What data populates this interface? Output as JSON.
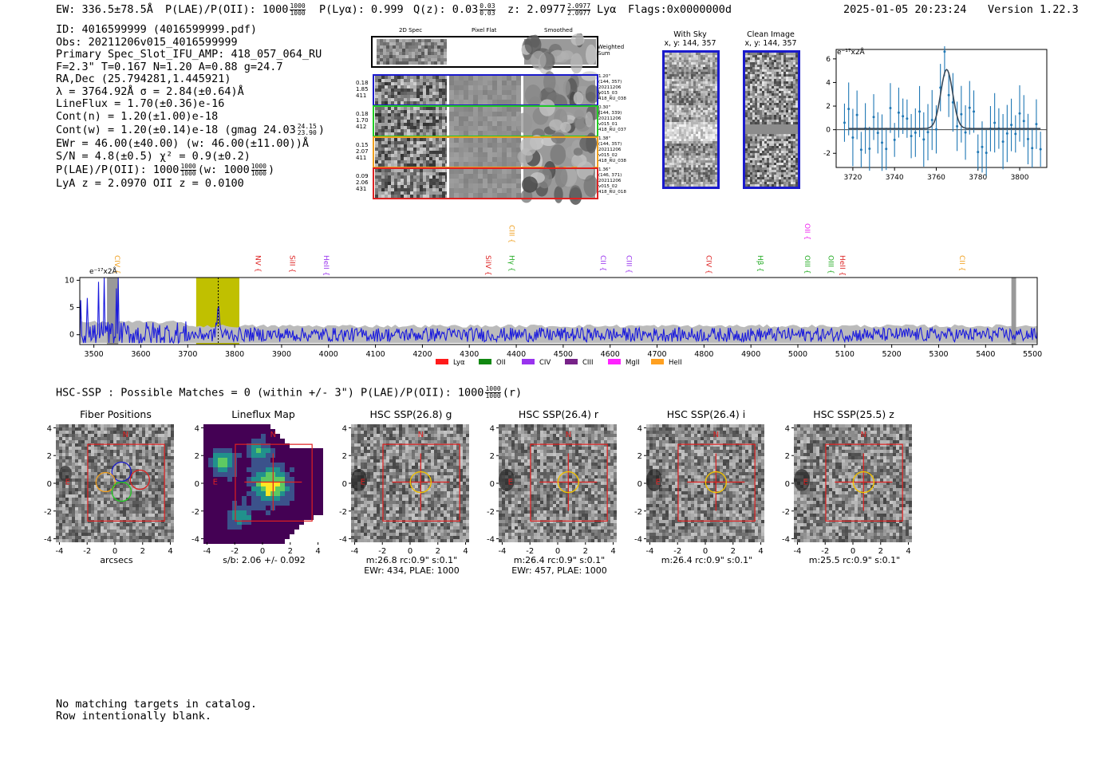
{
  "header": {
    "ew": "EW: 336.5±78.5Å",
    "plae_label": "P(LAE)/P(OII): 1000",
    "plae_hi": "1000",
    "plae_lo": "1000",
    "plya": "P(Lyα): 0.999",
    "qz_label": "Q(z): 0.03",
    "qz_hi": "0.03",
    "qz_lo": "0.03",
    "z_label": "z: 2.0977",
    "z_hi": "2.0977",
    "z_lo": "2.0977",
    "line": "Lyα",
    "flags": "Flags:0x0000000d",
    "datetime": "2025-01-05 20:23:24",
    "version": "Version 1.22.3"
  },
  "info": {
    "id": "ID: 4016599999 (4016599999.pdf)",
    "obs": "Obs: 20211206v015_4016599999",
    "primary": "Primary Spec_Slot_IFU_AMP: 418_057_064_RU",
    "params": "F=2.3\"  T=0.167  N=1.20  A=0.88  g=24.7",
    "radec": "RA,Dec (25.794281,1.445921)",
    "lambda": "λ = 3764.92Å  σ = 2.84(±0.64)Å",
    "lineflux": "LineFlux = 1.70(±0.36)e-16",
    "contn": "Cont(n) = 1.20(±1.00)e-18",
    "contw": "Cont(w) = 1.20(±0.14)e-18 (gmag 24.03",
    "contw_hi": "24.15",
    "contw_lo": "23.90",
    "contw_end": ")",
    "ewr": "EWr = 46.00(±40.00) (w: 46.00(±11.00))Å",
    "sn": "S/N = 4.8(±0.5)  χ² = 0.9(±0.2)",
    "plae": "P(LAE)/P(OII): 1000",
    "plae_hi": "1000",
    "plae_lo": "1000",
    "plae_w": "(w: 1000",
    "plae_w_hi": "1000",
    "plae_w_lo": "1000",
    "plae_end": ")",
    "lyaz": "LyA z = 2.0970  OII z = 0.0100"
  },
  "cutouts": {
    "col_headers": [
      "2D Spec",
      "Pixel Flat",
      "Smoothed"
    ],
    "weighted": "Weighted\nSum",
    "rows": [
      {
        "left": [
          "0.18",
          "1.85",
          "411"
        ],
        "right": [
          "1.20\"",
          "(144, 357)",
          "20211206",
          "v015_03",
          "418_RU_038"
        ],
        "color": "#1a1acc"
      },
      {
        "left": [
          "0.18",
          "1.70",
          "412"
        ],
        "right": [
          "0.30\"",
          "(144, 339)",
          "20211206",
          "v015_01",
          "418_RU_037"
        ],
        "color": "#22cc22"
      },
      {
        "left": [
          "0.15",
          "2.07",
          "411"
        ],
        "right": [
          "1.38\"",
          "(144, 357)",
          "20211206",
          "v015_02",
          "418_RU_038"
        ],
        "color": "#f0a020"
      },
      {
        "left": [
          "0.09",
          "2.06",
          "431"
        ],
        "right": [
          "1.36\"",
          "(146, 371)",
          "20211206",
          "v015_02",
          "418_RU_018"
        ],
        "color": "#dd2222"
      }
    ]
  },
  "sky": {
    "with_sky": "With Sky",
    "with_sky_xy": "x, y: 144, 357",
    "clean": "Clean Image",
    "clean_xy": "x, y: 144, 357"
  },
  "zoom_plot": {
    "unit": "e⁻¹⁷x2Å",
    "xticks": [
      "3720",
      "3740",
      "3760",
      "3780",
      "3800"
    ],
    "yticks": [
      "6",
      "4",
      "2",
      "0",
      "-2"
    ]
  },
  "spectrum": {
    "unit": "e⁻¹⁷x2Å",
    "yticks": [
      "10",
      "5",
      "0"
    ],
    "xticks": [
      "3500",
      "3600",
      "3700",
      "3800",
      "3900",
      "4000",
      "4100",
      "4200",
      "4300",
      "4400",
      "4500",
      "4600",
      "4700",
      "4800",
      "4900",
      "5000",
      "5100",
      "5200",
      "5300",
      "5400",
      "5500"
    ],
    "lines": [
      {
        "label": "CIV",
        "color": "#f0a020",
        "wl": 3540
      },
      {
        "label": "NV",
        "color": "#dd2222",
        "wl": 3840
      },
      {
        "label": "SiII",
        "color": "#dd2222",
        "wl": 3913
      },
      {
        "label": "HeII",
        "color": "#9933ee",
        "wl": 3985
      },
      {
        "label": "SiIV",
        "color": "#dd2222",
        "wl": 4330
      },
      {
        "label": "CIII",
        "color": "#f0a020",
        "wl": 4380
      },
      {
        "label": "Hγ",
        "color": "#22aa22",
        "wl": 4380
      },
      {
        "label": "CII",
        "color": "#9933ee",
        "wl": 4575
      },
      {
        "label": "CIII",
        "color": "#9933ee",
        "wl": 4630
      },
      {
        "label": "CIV",
        "color": "#dd2222",
        "wl": 4800
      },
      {
        "label": "Hβ",
        "color": "#22aa22",
        "wl": 4910
      },
      {
        "label": "OIII",
        "color": "#22aa22",
        "wl": 5010
      },
      {
        "label": "OII",
        "color": "#ee22ee",
        "wl": 5010
      },
      {
        "label": "OIII",
        "color": "#22aa22",
        "wl": 5060
      },
      {
        "label": "HeII",
        "color": "#dd2222",
        "wl": 5085
      },
      {
        "label": "CII",
        "color": "#f0a020",
        "wl": 5340
      }
    ],
    "legend": [
      {
        "label": "Lyα",
        "color": "#ff1a1a"
      },
      {
        "label": "OII",
        "color": "#118811"
      },
      {
        "label": "CIV",
        "color": "#9933ee"
      },
      {
        "label": "CIII",
        "color": "#772288"
      },
      {
        "label": "MgII",
        "color": "#ff22ff"
      },
      {
        "label": "HeII",
        "color": "#ffa020"
      }
    ]
  },
  "hsc": {
    "title": "HSC-SSP : Possible Matches = 0 (within +/- 3\")  P(LAE)/P(OII): 1000",
    "title_hi": "1000",
    "title_lo": "1000",
    "title_end": "(r)",
    "panels": [
      {
        "title": "Fiber Positions",
        "caption": [
          "arcsecs"
        ]
      },
      {
        "title": "Lineflux Map",
        "caption": [
          "s/b: 2.06 +/- 0.092"
        ]
      },
      {
        "title": "HSC SSP(26.8) g",
        "caption": [
          "m:26.8 rc:0.9\"  s:0.1\"",
          "EWr: 434, PLAE: 1000"
        ]
      },
      {
        "title": "HSC SSP(26.4) r",
        "caption": [
          "m:26.4 rc:0.9\"  s:0.1\"",
          "EWr: 457, PLAE: 1000"
        ]
      },
      {
        "title": "HSC SSP(26.4) i",
        "caption": [
          "m:26.4 rc:0.9\"  s:0.1\""
        ]
      },
      {
        "title": "HSC SSP(25.5) z",
        "caption": [
          "m:25.5 rc:0.9\"  s:0.1\""
        ]
      }
    ],
    "axis_ticks": [
      "4",
      "2",
      "0",
      "-2",
      "-4"
    ],
    "x_ticks": [
      "-4",
      "-2",
      "0",
      "2",
      "4"
    ],
    "n_label": "N",
    "e_label": "E"
  },
  "footer": {
    "line1": "No matching targets in catalog.",
    "line2": "Row intentionally blank."
  }
}
